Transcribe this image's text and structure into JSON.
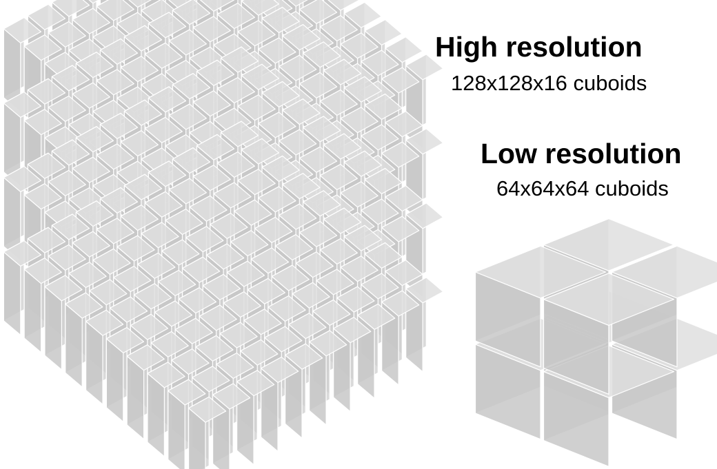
{
  "high_resolution": {
    "title": "High resolution",
    "subtitle": "128x128x16 cuboids"
  },
  "low_resolution": {
    "title": "Low resolution",
    "subtitle": "64x64x64 cuboids"
  },
  "colors": {
    "top_face": "#dedede",
    "left_face": "#d2d2d2",
    "right_face": "#c6c6c6",
    "edge": "#ffffff",
    "background": "#ffffff"
  }
}
